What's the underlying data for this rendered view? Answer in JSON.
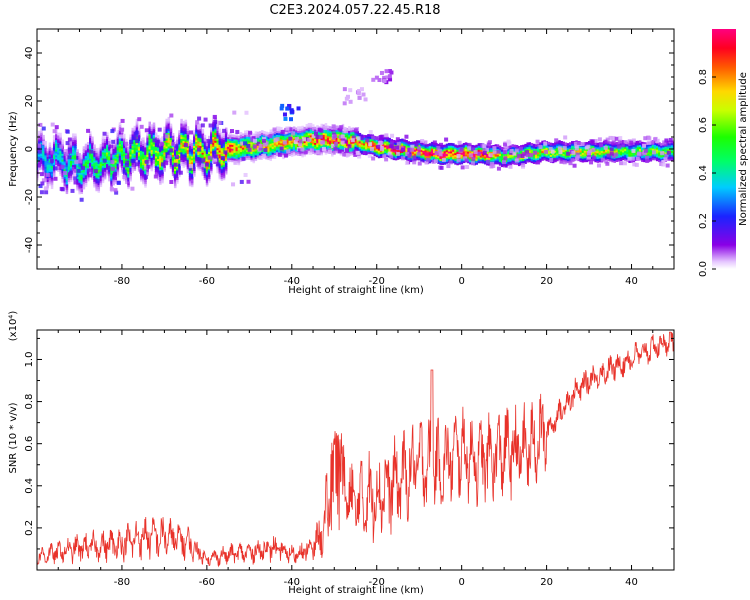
{
  "title": "C2E3.2024.057.22.45.R18",
  "chart_data": [
    {
      "type": "heatmap",
      "xlabel": "Height of straight line (km)",
      "ylabel": "Frequency (Hz)",
      "xlim": [
        -100,
        50
      ],
      "ylim": [
        -50,
        50
      ],
      "x_ticks": [
        "-80",
        "-60",
        "-40",
        "-20",
        "0",
        "20",
        "40"
      ],
      "x_tick_values": [
        -80,
        -60,
        -40,
        -20,
        0,
        20,
        40
      ],
      "y_ticks": [
        "40",
        "20",
        "0",
        "-20",
        "-40"
      ],
      "y_tick_values": [
        40,
        20,
        0,
        -20,
        -40
      ],
      "colorbar": {
        "label": "Normalized spectral amplitude",
        "range": [
          0,
          1
        ],
        "ticks": [
          "0.0",
          "0.2",
          "0.4",
          "0.6",
          "0.8"
        ],
        "tick_values": [
          0.0,
          0.2,
          0.4,
          0.6,
          0.8
        ]
      },
      "ridge": {
        "x": [
          -100,
          -95,
          -90,
          -85,
          -80,
          -75,
          -70,
          -65,
          -60,
          -55,
          -50,
          -45,
          -40,
          -35,
          -30,
          -25,
          -20,
          -15,
          -10,
          -5,
          0,
          5,
          10,
          15,
          20,
          25,
          30,
          35,
          40,
          45,
          50
        ],
        "freq": [
          -4,
          -5,
          -7,
          -6,
          -3,
          -2,
          -1,
          -1,
          -1,
          0,
          1,
          2,
          3,
          4,
          4,
          3,
          1,
          0,
          -1,
          -2,
          -2,
          -2,
          -3,
          -2,
          -1,
          -1,
          -1,
          -1,
          -1,
          -1,
          -1
        ],
        "peak_amplitude": [
          0.35,
          0.4,
          0.45,
          0.5,
          0.55,
          0.6,
          0.65,
          0.7,
          0.75,
          0.85,
          0.7,
          0.7,
          0.75,
          0.8,
          0.85,
          0.8,
          0.9,
          0.95,
          0.9,
          1.0,
          0.95,
          0.95,
          0.6,
          0.75,
          0.7,
          0.65,
          0.7,
          0.65,
          0.6,
          0.6,
          0.55
        ]
      },
      "outliers": [
        {
          "x": -40,
          "freq": 15,
          "amplitude": 0.25
        },
        {
          "x": -25,
          "freq": 22,
          "amplitude": 0.05
        },
        {
          "x": -18,
          "freq": 30,
          "amplitude": 0.08
        }
      ]
    },
    {
      "type": "line",
      "xlabel": "Height of straight line (km)",
      "ylabel": "SNR (10 * v/v)",
      "y_multiplier": "(x10⁴)",
      "xlim": [
        -100,
        50
      ],
      "ylim": [
        0,
        1.14
      ],
      "x_ticks": [
        "-80",
        "-60",
        "-40",
        "-20",
        "0",
        "20",
        "40"
      ],
      "x_tick_values": [
        -80,
        -60,
        -40,
        -20,
        0,
        20,
        40
      ],
      "y_ticks": [
        "1.0",
        "0.8",
        "0.6",
        "0.4",
        "0.2"
      ],
      "y_tick_values": [
        1.0,
        0.8,
        0.6,
        0.4,
        0.2
      ],
      "color": "#e8322a",
      "x": [
        -100,
        -95,
        -90,
        -85,
        -80,
        -75,
        -70,
        -65,
        -60,
        -55,
        -50,
        -45,
        -40,
        -35,
        -32,
        -30,
        -25,
        -20,
        -15,
        -10,
        -5,
        0,
        5,
        10,
        15,
        20,
        25,
        30,
        35,
        40,
        45,
        50
      ],
      "y": [
        0.06,
        0.08,
        0.1,
        0.11,
        0.12,
        0.15,
        0.15,
        0.13,
        0.05,
        0.07,
        0.08,
        0.1,
        0.07,
        0.1,
        0.2,
        0.4,
        0.3,
        0.35,
        0.4,
        0.5,
        0.48,
        0.55,
        0.5,
        0.55,
        0.55,
        0.65,
        0.8,
        0.9,
        0.95,
        1.0,
        1.05,
        1.09
      ]
    }
  ]
}
